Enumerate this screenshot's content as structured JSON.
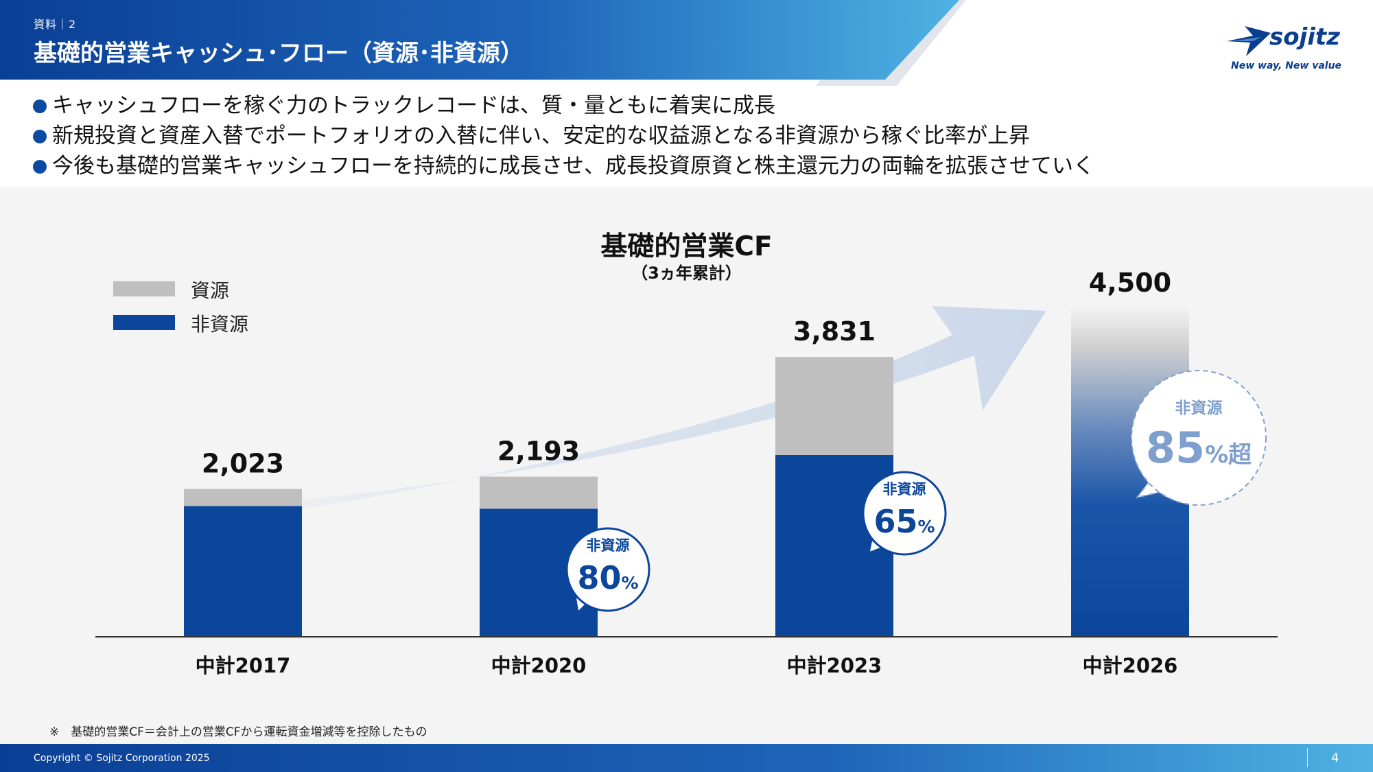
{
  "header": {
    "section_label": "資料｜2",
    "title": "基礎的営業キャッシュ･フロー（資源･非資源）"
  },
  "logo": {
    "word": "sojitz",
    "tagline": "New way, New value"
  },
  "bullets": [
    "キャッシュフローを稼ぐ力のトラックレコードは、質・量ともに着実に成長",
    "新規投資と資産入替でポートフォリオの入替に伴い、安定的な収益源となる非資源から稼ぐ比率が上昇",
    "今後も基礎的営業キャッシュフローを持続的に成長させ、成長投資原資と株主還元力の両輪を拡張させていく"
  ],
  "chart_data": {
    "type": "bar",
    "stacked": true,
    "title": "基礎的営業CF",
    "subtitle": "（3ヵ年累計）",
    "categories": [
      "中計2017",
      "中計2020",
      "中計2023",
      "中計2026"
    ],
    "series": [
      {
        "name": "非資源",
        "values": [
          1790,
          1754,
          2490,
          3825
        ],
        "color": "#0b469b"
      },
      {
        "name": "資源",
        "values": [
          233,
          439,
          1341,
          675
        ],
        "color": "#bfbfbf"
      }
    ],
    "totals": [
      "2,023",
      "2,193",
      "3,831",
      "4,500"
    ],
    "total_values": [
      2023,
      2193,
      3831,
      4500
    ],
    "ylim": [
      0,
      4500
    ],
    "legend": [
      "資源",
      "非資源"
    ],
    "legend_position": "top-left",
    "annotations": [
      {
        "category": "中計2020",
        "label": "非資源",
        "value": "80",
        "suffix": "%"
      },
      {
        "category": "中計2023",
        "label": "非資源",
        "value": "65",
        "suffix": "%"
      },
      {
        "category": "中計2026",
        "label": "非資源",
        "value": "85",
        "suffix": "%超"
      }
    ]
  },
  "footnote": "※　基礎的営業CF＝会計上の営業CFから運転資金増減等を控除したもの",
  "footer": {
    "copyright": "Copyright © Sojitz Corporation 2025",
    "page_number": "4"
  },
  "colors": {
    "brand_blue": "#0b469b",
    "resource_gray": "#bfbfbf",
    "accent_light_blue": "#7f9fcf"
  }
}
